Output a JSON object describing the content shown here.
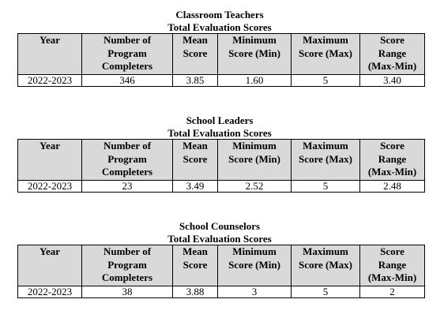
{
  "headers": {
    "year": "Year",
    "completers": [
      "Number of",
      "Program",
      "Completers"
    ],
    "mean": [
      "Mean",
      "Score"
    ],
    "min": [
      "Minimum",
      "Score (Min)"
    ],
    "max": [
      "Maximum",
      "Score (Max)"
    ],
    "range": [
      "Score",
      "Range",
      "(Max-Min)"
    ]
  },
  "tables": [
    {
      "title": "Classroom Teachers",
      "subtitle": "Total Evaluation Scores",
      "row": {
        "year": "2022-2023",
        "completers": "346",
        "mean": "3.85",
        "min": "1.60",
        "max": "5",
        "range": "3.40"
      }
    },
    {
      "title": "School Leaders",
      "subtitle": "Total Evaluation Scores",
      "row": {
        "year": "2022-2023",
        "completers": "23",
        "mean": "3.49",
        "min": "2.52",
        "max": "5",
        "range": "2.48"
      }
    },
    {
      "title": "School Counselors",
      "subtitle": "Total Evaluation Scores",
      "row": {
        "year": "2022-2023",
        "completers": "38",
        "mean": "3.88",
        "min": "3",
        "max": "5",
        "range": "2"
      }
    }
  ]
}
